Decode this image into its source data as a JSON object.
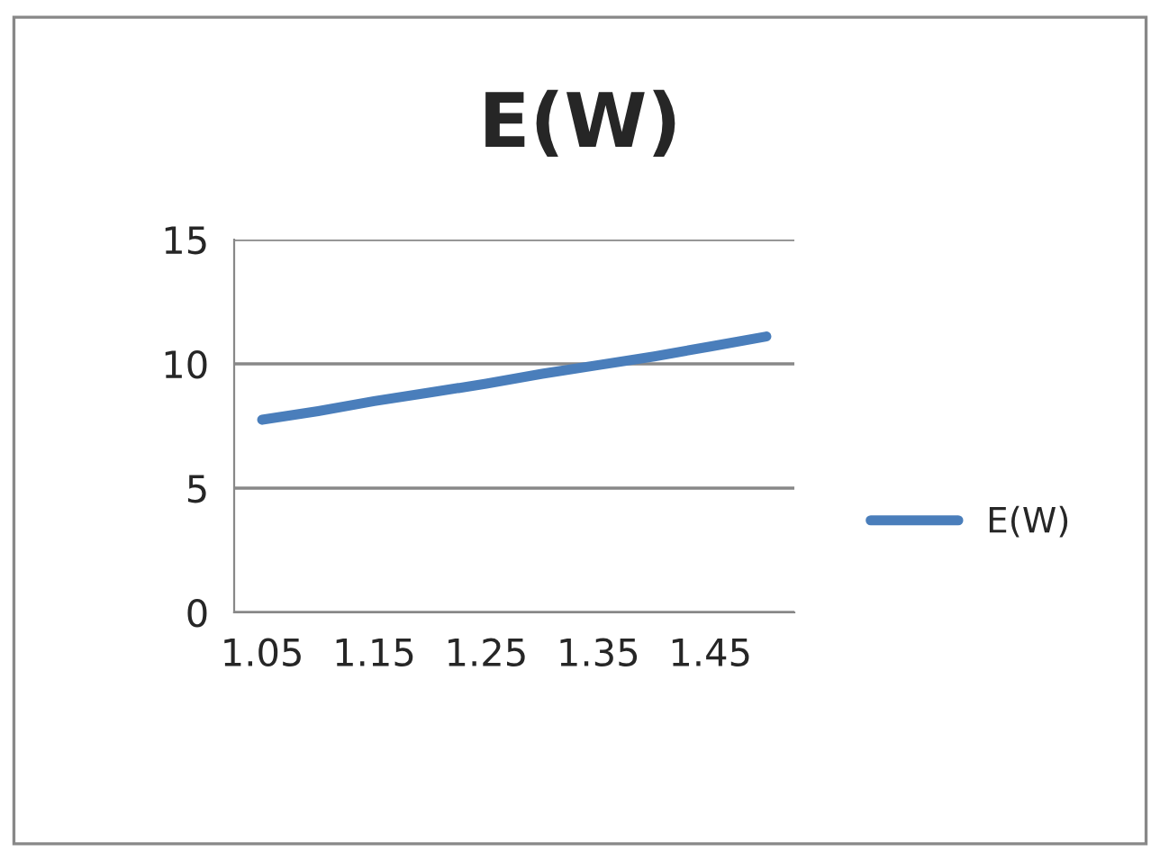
{
  "chart_data": {
    "type": "line",
    "title": "E(W)",
    "categories": [
      "1.05",
      null,
      "1.15",
      null,
      "1.25",
      null,
      "1.35",
      null,
      "1.45",
      null
    ],
    "series": [
      {
        "name": "E(W)",
        "color": "#4a7ebb",
        "values": [
          7.75,
          8.1,
          8.5,
          8.85,
          9.2,
          9.6,
          9.95,
          10.3,
          10.7,
          11.1
        ]
      }
    ],
    "ylim": [
      0,
      15
    ],
    "yticks": [
      0,
      5,
      10,
      15
    ],
    "grid": "y",
    "legend": "right",
    "marker": "none",
    "line_style": "solid"
  }
}
